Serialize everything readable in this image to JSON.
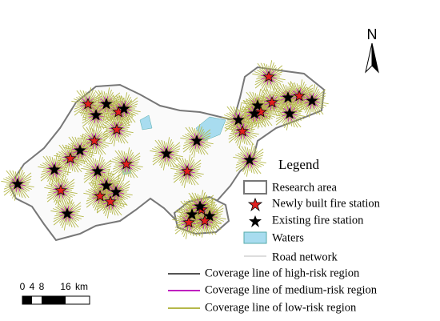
{
  "north_arrow": {
    "label": "N"
  },
  "legend": {
    "title": "Legend",
    "items": [
      "Research area",
      "Newly built fire station",
      "Existing fire station",
      "Waters",
      "Road network",
      "Coverage line of high-risk region",
      "Coverage line of medium-risk region",
      "Coverage line of low-risk region"
    ]
  },
  "scale_bar": {
    "labels": [
      "0",
      "4",
      "8",
      "16"
    ],
    "unit": "km"
  }
}
